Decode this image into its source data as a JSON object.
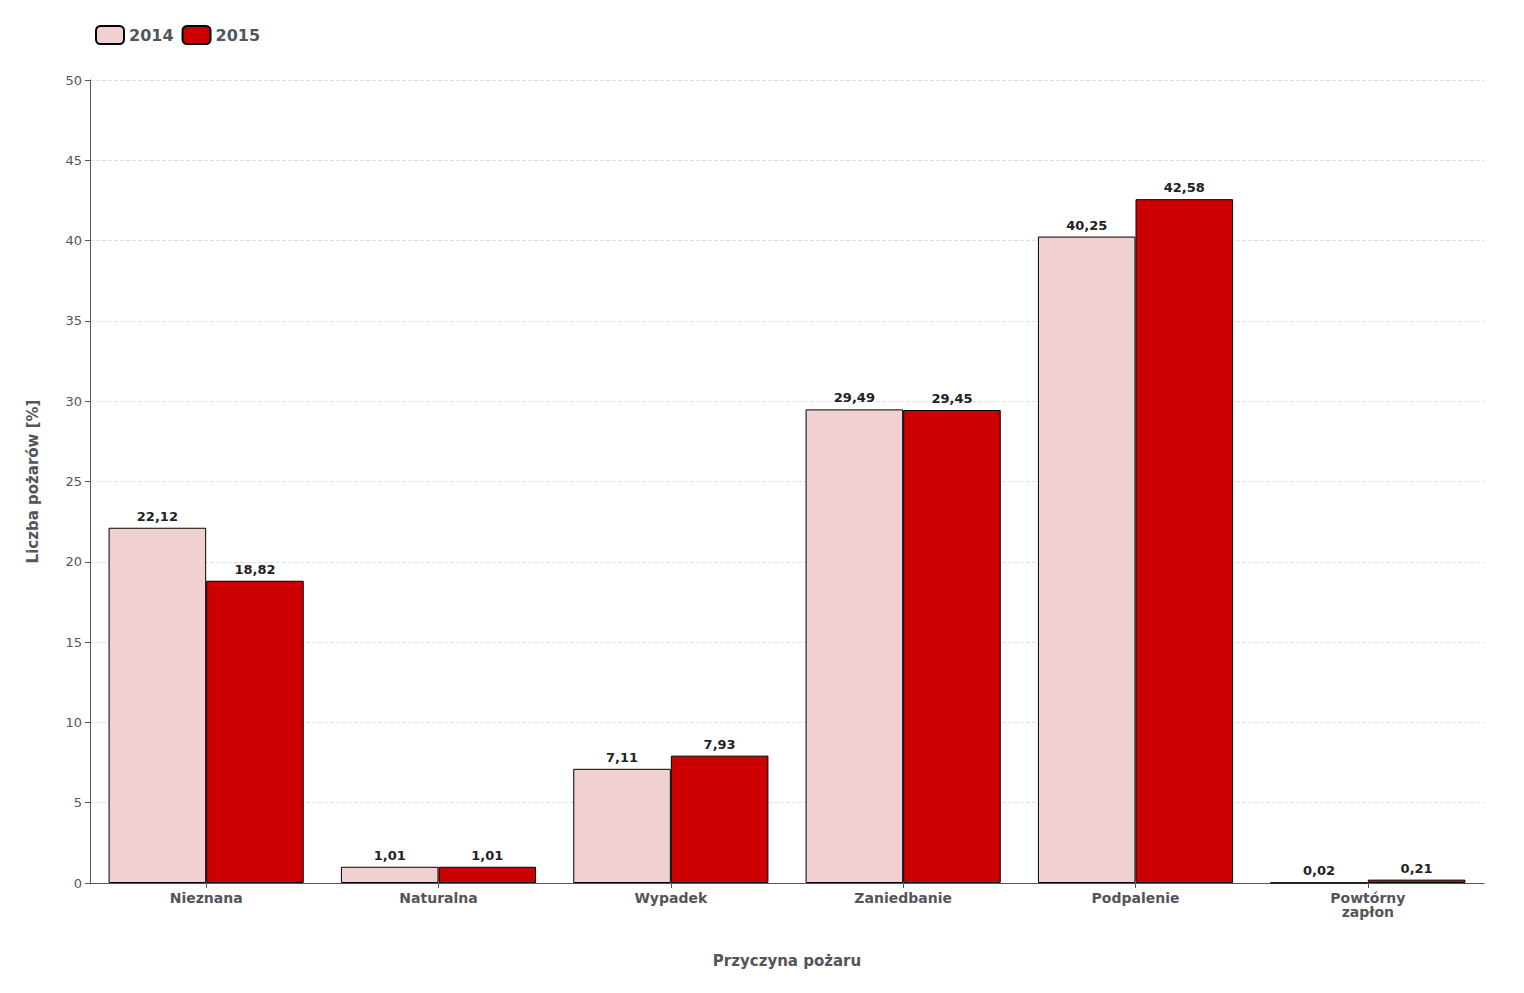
{
  "chart_data": {
    "type": "bar",
    "categories": [
      "Nieznana",
      "Naturalna",
      "Wypadek",
      "Zaniedbanie",
      "Podpalenie",
      "Powtórny\nzapłon"
    ],
    "series": [
      {
        "name": "2014",
        "color": "#f0d0d0",
        "values": [
          22.12,
          1.01,
          7.11,
          29.49,
          40.25,
          0.02
        ],
        "value_labels": [
          "22,12",
          "1,01",
          "7,11",
          "29,49",
          "40,25",
          "0,02"
        ]
      },
      {
        "name": "2015",
        "color": "#cc0000",
        "values": [
          18.82,
          1.01,
          7.93,
          29.45,
          42.58,
          0.21
        ],
        "value_labels": [
          "18,82",
          "1,01",
          "7,93",
          "29,45",
          "42,58",
          "0,21"
        ]
      }
    ],
    "xlabel": "Przyczyna pożaru",
    "ylabel": "Liczba pożarów [%]",
    "ylim": [
      0,
      50
    ],
    "yticks": [
      0,
      5,
      10,
      15,
      20,
      25,
      30,
      35,
      40,
      45,
      50
    ],
    "grid": true,
    "legend": "upper left",
    "data_labels": true
  }
}
